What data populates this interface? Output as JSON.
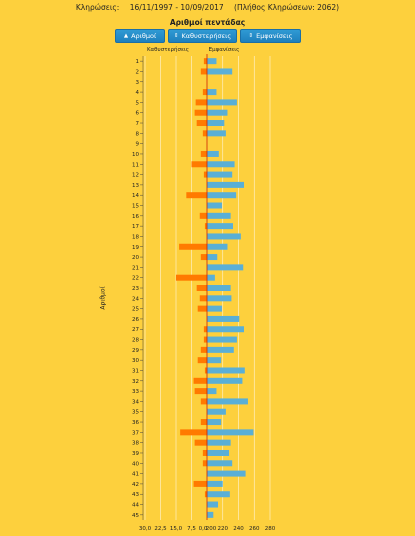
{
  "header": {
    "label": "Κληρώσεις:",
    "range": "16/11/1997 - 10/09/2017",
    "total": "(Πλήθος Κληρώσεων: 2062)"
  },
  "buttons": [
    {
      "label": "Αριθμοί",
      "icon": "sort-up-icon"
    },
    {
      "label": "Καθυστερήσεις",
      "icon": "sort-icon"
    },
    {
      "label": "Εμφανίσεις",
      "icon": "sort-icon"
    }
  ],
  "colors": {
    "background": "#fdd03d",
    "delay_bar": "#ff7a00",
    "appearance_bar": "#5aafd6",
    "button": "#2389c9",
    "gridline": "#ffffff",
    "zero_line": "#cc2200"
  },
  "chart_data": {
    "type": "bar",
    "orientation": "horizontal",
    "title": "Αριθμοί πεντάδας",
    "ylabel": "Αριθμοί",
    "categories": [
      "1",
      "2",
      "3",
      "4",
      "5",
      "6",
      "7",
      "8",
      "9",
      "10",
      "11",
      "12",
      "13",
      "14",
      "15",
      "16",
      "17",
      "18",
      "19",
      "20",
      "21",
      "22",
      "23",
      "24",
      "25",
      "26",
      "27",
      "28",
      "29",
      "30",
      "31",
      "32",
      "33",
      "34",
      "35",
      "36",
      "37",
      "38",
      "39",
      "40",
      "41",
      "42",
      "43",
      "44",
      "45"
    ],
    "series": [
      {
        "name": "Καθυστερήσεις",
        "values": [
          1.5,
          3,
          0,
          2,
          5.5,
          6,
          5,
          2,
          0,
          3,
          7.5,
          1.5,
          0,
          10,
          0,
          3.5,
          1,
          0,
          13.5,
          3,
          0,
          15,
          5,
          3.5,
          4.5,
          0,
          1.5,
          1.5,
          3,
          4.5,
          1,
          6.5,
          6,
          3,
          0,
          3,
          13,
          6,
          2,
          2,
          0,
          6.5,
          1,
          0,
          0
        ]
      },
      {
        "name": "Εμφανίσεις",
        "values": [
          212,
          232,
          200,
          212,
          238,
          226,
          222,
          224,
          198,
          215,
          235,
          232,
          247,
          237,
          219,
          230,
          233,
          243,
          226,
          213,
          246,
          210,
          230,
          231,
          219,
          241,
          247,
          238,
          234,
          218,
          248,
          245,
          212,
          252,
          224,
          218,
          259,
          230,
          228,
          232,
          249,
          220,
          229,
          214,
          208
        ]
      }
    ],
    "delay_axis": {
      "ticks": [
        "30,0",
        "22,5",
        "15,0",
        "7,5",
        "0,0"
      ],
      "range": [
        0,
        30
      ]
    },
    "appearance_axis": {
      "ticks": [
        "200",
        "220",
        "240",
        "260",
        "280"
      ],
      "range": [
        200,
        280
      ]
    }
  }
}
